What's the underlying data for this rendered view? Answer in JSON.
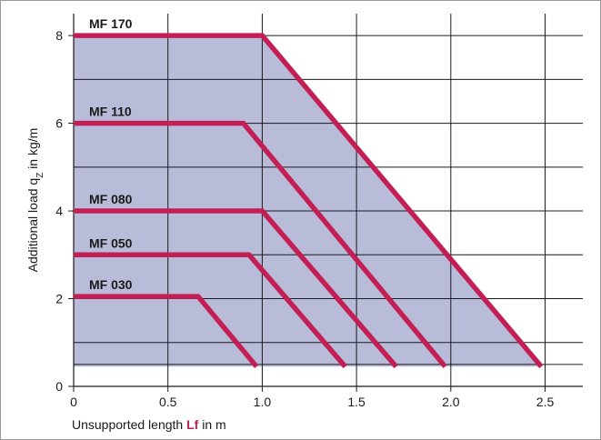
{
  "chart_data": {
    "type": "area",
    "title": "",
    "xlim": [
      0,
      2.7
    ],
    "ylim": [
      0,
      8.5
    ],
    "x_ticks": [
      0,
      0.5,
      1.0,
      1.5,
      2.0,
      2.5
    ],
    "x_tick_labels": [
      "0",
      "0.5",
      "1.0",
      "1.5",
      "2.0",
      "2.5"
    ],
    "y_ticks": [
      0,
      2,
      4,
      6,
      8
    ],
    "y_tick_labels": [
      "0",
      "2",
      "4",
      "6",
      "8"
    ],
    "grid_x": [
      0.5,
      1.0,
      1.5,
      2.0,
      2.5
    ],
    "grid_y": [
      0.5,
      1,
      2,
      3,
      4,
      5,
      6,
      7,
      8
    ],
    "grid": true,
    "xlabel": {
      "prefix": "Unsupported length ",
      "symbol": "Lf",
      "suffix": " in m"
    },
    "ylabel": {
      "prefix": "Additional load q",
      "subscript": "Z",
      "suffix": " in kg/m"
    },
    "region": {
      "color": "#b8bcd9",
      "points": [
        [
          0,
          0.45
        ],
        [
          0,
          8
        ],
        [
          1.0,
          8
        ],
        [
          2.48,
          0.45
        ]
      ]
    },
    "line_color": "#c41f55",
    "series": [
      {
        "name": "MF 170",
        "points": [
          [
            0,
            8
          ],
          [
            1.0,
            8
          ],
          [
            2.48,
            0.45
          ]
        ]
      },
      {
        "name": "MF 110",
        "points": [
          [
            0,
            6
          ],
          [
            0.9,
            6
          ],
          [
            1.97,
            0.45
          ]
        ]
      },
      {
        "name": "MF 080",
        "points": [
          [
            0,
            4
          ],
          [
            1.0,
            4
          ],
          [
            1.71,
            0.45
          ]
        ]
      },
      {
        "name": "MF 050",
        "points": [
          [
            0,
            3
          ],
          [
            0.93,
            3
          ],
          [
            1.44,
            0.45
          ]
        ]
      },
      {
        "name": "MF 030",
        "points": [
          [
            0,
            2.05
          ],
          [
            0.66,
            2.05
          ],
          [
            0.97,
            0.45
          ]
        ]
      }
    ]
  }
}
